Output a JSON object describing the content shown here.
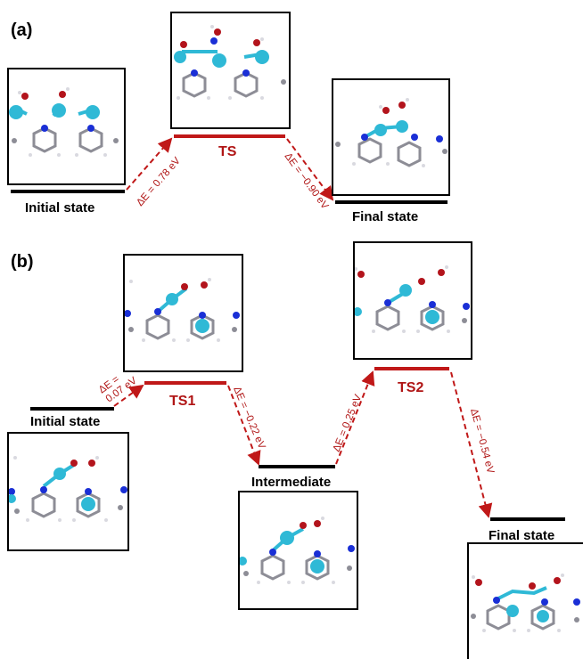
{
  "colors": {
    "ground_level": "#000000",
    "transition_level": "#c01818",
    "arrow": "#c01818",
    "atom_metal": "#2fb9d6",
    "atom_nitrogen": "#1a2fd6",
    "atom_carbon": "#8d8d96",
    "atom_hydrogen": "#e8e8ee",
    "atom_oxygen": "#b3141c"
  },
  "panel_a": {
    "label": "(a)",
    "initial_label": "Initial state",
    "ts_label": "TS",
    "final_label": "Final state",
    "de_up": "ΔE = 0.78 eV",
    "de_down": "ΔE = −0.90 eV"
  },
  "panel_b": {
    "label": "(b)",
    "initial_label": "Initial state",
    "ts1_label": "TS1",
    "intermediate_label": "Intermediate",
    "ts2_label": "TS2",
    "final_label": "Final state",
    "de1_line1": "ΔE =",
    "de1_line2": "0.07 eV",
    "de2": "ΔE = −0.22 eV",
    "de3": "ΔE = 0.25 eV",
    "de4": "ΔE = −0.54 eV"
  }
}
